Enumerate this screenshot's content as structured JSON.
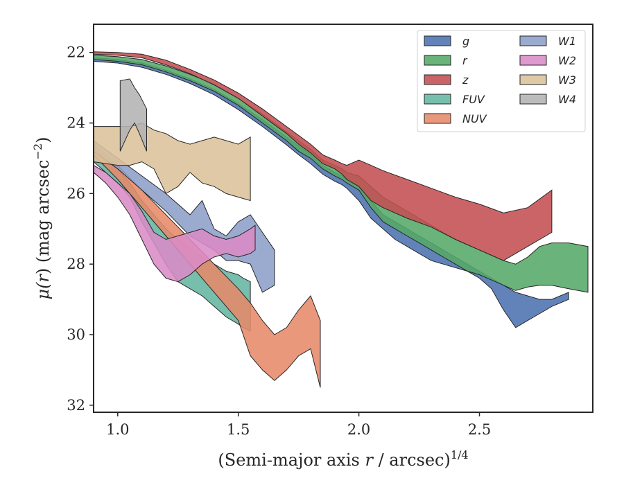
{
  "chart_data": {
    "type": "area",
    "xlabel": "(Semi-major axis r / arcsec)",
    "xlabel_parts": {
      "pre": "(Semi-major axis ",
      "var": "r",
      "post": " / arcsec)",
      "sup": "1/4"
    },
    "ylabel": "μ(r) (mag arcsec⁻²)",
    "ylabel_parts": {
      "mu": "μ(",
      "var": "r",
      "mid": ") (mag arcsec",
      "sup": "−2",
      "end": ")"
    },
    "xlim": [
      0.9,
      2.97
    ],
    "ylim": [
      32.2,
      21.2
    ],
    "y_inverted": true,
    "x_ticks": [
      1.0,
      1.5,
      2.0,
      2.5
    ],
    "x_tick_labels": [
      "1.0",
      "1.5",
      "2.0",
      "2.5"
    ],
    "y_ticks": [
      22,
      24,
      26,
      28,
      30,
      32
    ],
    "y_tick_labels": [
      "22",
      "24",
      "26",
      "28",
      "30",
      "32"
    ],
    "grid": false,
    "legend_position": "top-right",
    "series": [
      {
        "name": "g",
        "color": "#4c72b0",
        "x": [
          0.9,
          1.0,
          1.1,
          1.2,
          1.3,
          1.4,
          1.5,
          1.6,
          1.7,
          1.75,
          1.8,
          1.85,
          1.9,
          1.93,
          1.95,
          2.0,
          2.05,
          2.1,
          2.15,
          2.2,
          2.25,
          2.3,
          2.35,
          2.4,
          2.45,
          2.5,
          2.55,
          2.6,
          2.65,
          2.7,
          2.75,
          2.8,
          2.87
        ],
        "lo": [
          22.15,
          22.2,
          22.3,
          22.5,
          22.75,
          23.05,
          23.45,
          23.9,
          24.4,
          24.65,
          24.9,
          25.2,
          25.4,
          25.5,
          25.6,
          25.8,
          26.2,
          26.6,
          26.8,
          27.0,
          27.2,
          27.4,
          27.6,
          27.8,
          28.0,
          28.2,
          28.4,
          28.6,
          28.8,
          28.9,
          29.0,
          29.0,
          28.8
        ],
        "hi": [
          22.25,
          22.3,
          22.42,
          22.62,
          22.88,
          23.2,
          23.62,
          24.1,
          24.62,
          24.9,
          25.15,
          25.45,
          25.65,
          25.75,
          25.85,
          26.2,
          26.7,
          27.0,
          27.3,
          27.5,
          27.7,
          27.9,
          28.0,
          28.1,
          28.2,
          28.4,
          28.7,
          29.3,
          29.8,
          29.6,
          29.4,
          29.2,
          29.0
        ]
      },
      {
        "name": "r",
        "color": "#55a868",
        "x": [
          0.9,
          1.0,
          1.1,
          1.2,
          1.3,
          1.4,
          1.5,
          1.6,
          1.7,
          1.75,
          1.8,
          1.85,
          1.9,
          1.93,
          1.95,
          2.0,
          2.05,
          2.1,
          2.15,
          2.2,
          2.25,
          2.3,
          2.35,
          2.4,
          2.45,
          2.5,
          2.55,
          2.6,
          2.65,
          2.7,
          2.75,
          2.8,
          2.87,
          2.95
        ],
        "lo": [
          22.08,
          22.12,
          22.2,
          22.38,
          22.62,
          22.9,
          23.3,
          23.75,
          24.25,
          24.5,
          24.75,
          25.05,
          25.2,
          25.3,
          25.4,
          25.5,
          25.8,
          26.1,
          26.3,
          26.5,
          26.7,
          26.9,
          27.1,
          27.3,
          27.45,
          27.6,
          27.75,
          27.9,
          28.0,
          27.8,
          27.5,
          27.4,
          27.4,
          27.5
        ],
        "hi": [
          22.2,
          22.25,
          22.35,
          22.55,
          22.8,
          23.1,
          23.5,
          24.0,
          24.5,
          24.8,
          25.0,
          25.3,
          25.5,
          25.6,
          25.7,
          25.9,
          26.4,
          26.8,
          27.0,
          27.2,
          27.4,
          27.6,
          27.8,
          28.0,
          28.2,
          28.3,
          28.45,
          28.6,
          28.75,
          28.65,
          28.6,
          28.6,
          28.7,
          28.8
        ]
      },
      {
        "name": "z",
        "color": "#c44e52",
        "x": [
          0.9,
          1.0,
          1.1,
          1.2,
          1.3,
          1.4,
          1.5,
          1.6,
          1.7,
          1.75,
          1.8,
          1.85,
          1.9,
          1.93,
          1.95,
          2.0,
          2.05,
          2.1,
          2.2,
          2.3,
          2.4,
          2.5,
          2.6,
          2.7,
          2.8
        ],
        "lo": [
          21.98,
          22.0,
          22.05,
          22.22,
          22.48,
          22.78,
          23.15,
          23.6,
          24.1,
          24.35,
          24.6,
          24.9,
          25.05,
          25.15,
          25.2,
          25.05,
          25.2,
          25.35,
          25.6,
          25.85,
          26.1,
          26.3,
          26.55,
          26.4,
          25.9
        ],
        "hi": [
          22.05,
          22.08,
          22.15,
          22.35,
          22.6,
          22.92,
          23.3,
          23.8,
          24.3,
          24.6,
          24.85,
          25.15,
          25.3,
          25.45,
          25.6,
          25.8,
          26.2,
          26.4,
          26.7,
          26.95,
          27.3,
          27.6,
          27.9,
          27.5,
          27.1
        ]
      },
      {
        "name": "FUV",
        "color": "#64b5a0",
        "x": [
          0.9,
          0.95,
          1.0,
          1.05,
          1.1,
          1.15,
          1.2,
          1.25,
          1.3,
          1.35,
          1.4,
          1.45,
          1.5,
          1.52,
          1.55
        ],
        "lo": [
          24.8,
          25.0,
          25.3,
          25.7,
          26.2,
          26.6,
          27.0,
          27.3,
          27.6,
          27.8,
          28.0,
          28.2,
          28.3,
          28.4,
          28.5
        ],
        "hi": [
          25.1,
          25.4,
          25.7,
          26.1,
          26.8,
          27.4,
          28.0,
          28.5,
          28.7,
          28.9,
          29.2,
          29.5,
          29.7,
          29.8,
          29.9
        ]
      },
      {
        "name": "NUV",
        "color": "#e68a6a",
        "x": [
          0.9,
          1.0,
          1.1,
          1.2,
          1.3,
          1.4,
          1.5,
          1.55,
          1.6,
          1.65,
          1.7,
          1.75,
          1.8,
          1.84
        ],
        "lo": [
          24.6,
          25.2,
          25.9,
          26.6,
          27.3,
          28.0,
          28.7,
          29.1,
          29.6,
          30.0,
          29.8,
          29.3,
          28.9,
          29.6
        ],
        "hi": [
          24.9,
          25.6,
          26.4,
          27.2,
          28.0,
          28.8,
          29.6,
          30.6,
          31.0,
          31.3,
          31.0,
          30.6,
          30.4,
          31.5
        ]
      },
      {
        "name": "W1",
        "color": "#8c9fc8",
        "x": [
          0.9,
          1.0,
          1.1,
          1.2,
          1.3,
          1.35,
          1.4,
          1.45,
          1.5,
          1.55,
          1.6,
          1.65
        ],
        "lo": [
          24.5,
          25.0,
          25.5,
          26.0,
          26.6,
          26.2,
          27.0,
          27.2,
          26.8,
          26.6,
          27.1,
          27.6
        ],
        "hi": [
          24.8,
          25.3,
          25.9,
          26.5,
          27.2,
          27.4,
          27.6,
          27.9,
          27.9,
          28.0,
          28.8,
          28.6
        ]
      },
      {
        "name": "W2",
        "color": "#d98bc6",
        "x": [
          0.9,
          0.95,
          1.0,
          1.05,
          1.1,
          1.15,
          1.2,
          1.25,
          1.3,
          1.35,
          1.4,
          1.45,
          1.5,
          1.55,
          1.57
        ],
        "lo": [
          25.2,
          25.4,
          25.7,
          26.0,
          26.5,
          27.1,
          27.3,
          27.2,
          27.1,
          27.0,
          27.2,
          27.3,
          27.2,
          27.0,
          26.9
        ],
        "hi": [
          25.4,
          25.7,
          26.1,
          26.6,
          27.3,
          28.0,
          28.4,
          28.5,
          28.3,
          28.0,
          27.8,
          27.7,
          27.8,
          27.7,
          27.6
        ]
      },
      {
        "name": "W3",
        "color": "#dcc19a",
        "x": [
          0.9,
          1.0,
          1.05,
          1.1,
          1.15,
          1.2,
          1.25,
          1.3,
          1.35,
          1.4,
          1.45,
          1.5,
          1.55
        ],
        "lo": [
          24.1,
          24.1,
          24.1,
          24.0,
          24.2,
          24.3,
          24.5,
          24.6,
          24.5,
          24.4,
          24.5,
          24.6,
          24.4
        ],
        "hi": [
          25.1,
          25.2,
          25.2,
          25.1,
          25.3,
          26.0,
          25.8,
          25.4,
          25.7,
          25.8,
          26.0,
          26.1,
          26.2
        ]
      },
      {
        "name": "W4",
        "color": "#b3b3b3",
        "x": [
          1.01,
          1.05,
          1.07,
          1.09,
          1.12
        ],
        "lo": [
          22.8,
          22.75,
          23.0,
          23.2,
          23.6
        ],
        "hi": [
          24.8,
          24.2,
          24.0,
          24.3,
          24.8
        ]
      }
    ],
    "legend_columns": [
      [
        "g",
        "r",
        "z",
        "FUV",
        "NUV"
      ],
      [
        "W1",
        "W2",
        "W3",
        "W4"
      ]
    ]
  }
}
